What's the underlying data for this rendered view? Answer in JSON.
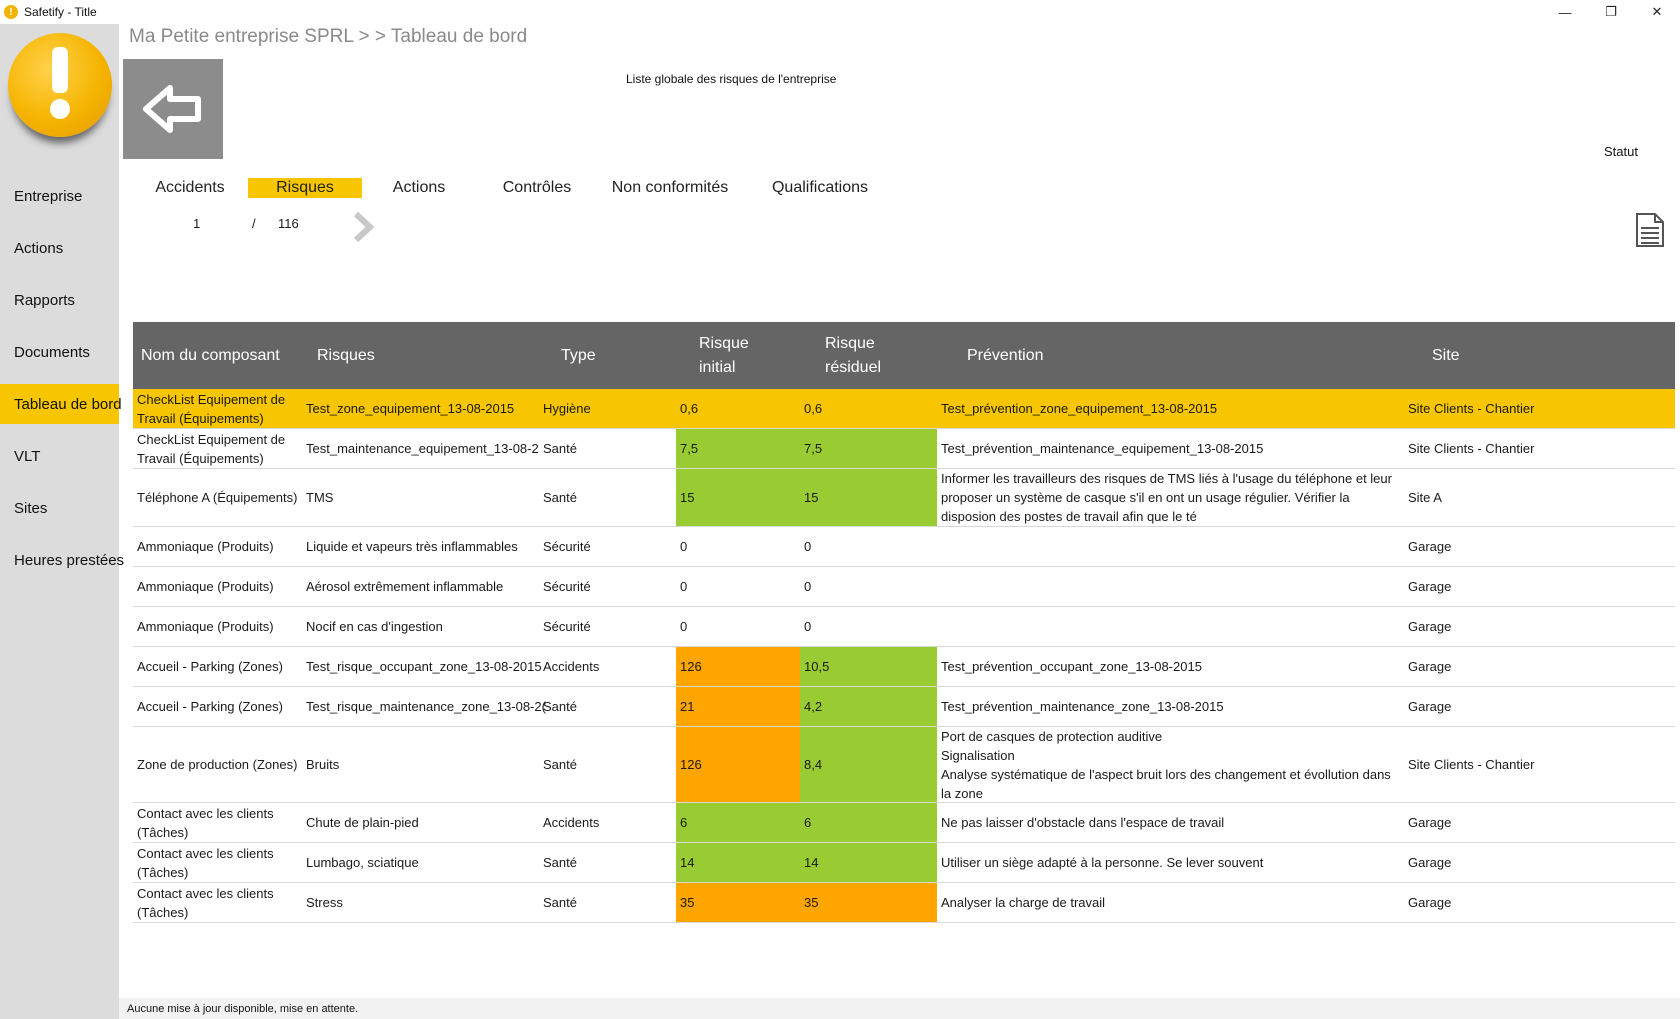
{
  "window": {
    "title": "Safetify - Title",
    "controls": [
      "—",
      "❐",
      "✕"
    ]
  },
  "sidebar": {
    "items": [
      {
        "label": "Entreprise"
      },
      {
        "label": "Actions"
      },
      {
        "label": "Rapports"
      },
      {
        "label": "Documents"
      },
      {
        "label": "Tableau de bord",
        "active": true
      },
      {
        "label": "VLT"
      },
      {
        "label": "Sites"
      },
      {
        "label": "Heures prestées"
      }
    ]
  },
  "header": {
    "breadcrumb": "Ma Petite entreprise SPRL > > Tableau de bord",
    "subtitle": "Liste globale des risques de l'entreprise",
    "statut": "Statut"
  },
  "tabs": [
    {
      "label": "Accidents"
    },
    {
      "label": "Risques",
      "active": true
    },
    {
      "label": "Actions"
    },
    {
      "label": "Contrôles"
    },
    {
      "label": "Non conformités"
    },
    {
      "label": "Qualifications"
    }
  ],
  "pager": {
    "current": "1",
    "separator": "/",
    "total": "116"
  },
  "colors": {
    "accent": "#f7c600",
    "green": "#99cc33",
    "orange": "#ffa500",
    "header": "#656565",
    "sidebar": "#dcdcdc"
  },
  "table": {
    "columns": [
      "Nom du composant",
      "Risques",
      "Type",
      "Risque initial",
      "Risque résiduel",
      "Prévention",
      "Site"
    ],
    "rows": [
      {
        "nom": "CheckList Equipement de Travail  (Équipements)",
        "risque": "Test_zone_equipement_13-08-2015",
        "type": "Hygiène",
        "initial": "0,6",
        "residuel": "0,6",
        "prevention": "Test_prévention_zone_equipement_13-08-2015",
        "site": "Site Clients - Chantier",
        "init_color": "",
        "res_color": ""
      },
      {
        "nom": "CheckList Equipement de Travail  (Équipements)",
        "risque": "Test_maintenance_equipement_13-08-2",
        "type": "Santé",
        "initial": "7,5",
        "residuel": "7,5",
        "prevention": "Test_prévention_maintenance_equipement_13-08-2015",
        "site": "Site Clients - Chantier",
        "init_color": "green",
        "res_color": "green"
      },
      {
        "nom": "Téléphone A (Équipements)",
        "risque": "TMS",
        "type": "Santé",
        "initial": "15",
        "residuel": "15",
        "prevention": "Informer les travailleurs des risques de TMS liés à l'usage du téléphone et leur proposer un système de casque s'il en ont un usage régulier. Vérifier la disposion des postes de travail afin que le té",
        "site": "Site A",
        "init_color": "green",
        "res_color": "green"
      },
      {
        "nom": "Ammoniaque (Produits)",
        "risque": "Liquide et vapeurs très inflammables",
        "type": "Sécurité",
        "initial": "0",
        "residuel": "0",
        "prevention": "",
        "site": "Garage",
        "init_color": "",
        "res_color": ""
      },
      {
        "nom": "Ammoniaque (Produits)",
        "risque": "Aérosol extrêmement inflammable",
        "type": "Sécurité",
        "initial": "0",
        "residuel": "0",
        "prevention": "",
        "site": "Garage",
        "init_color": "",
        "res_color": ""
      },
      {
        "nom": "Ammoniaque (Produits)",
        "risque": "Nocif en cas d'ingestion",
        "type": "Sécurité",
        "initial": "0",
        "residuel": "0",
        "prevention": "",
        "site": "Garage",
        "init_color": "",
        "res_color": ""
      },
      {
        "nom": "Accueil - Parking (Zones)",
        "risque": "Test_risque_occupant_zone_13-08-2015",
        "type": "Accidents",
        "initial": "126",
        "residuel": "10,5",
        "prevention": "Test_prévention_occupant_zone_13-08-2015",
        "site": "Garage",
        "init_color": "orange",
        "res_color": "green"
      },
      {
        "nom": "Accueil - Parking (Zones)",
        "risque": "Test_risque_maintenance_zone_13-08-2(",
        "type": "Santé",
        "initial": "21",
        "residuel": "4,2",
        "prevention": "Test_prévention_maintenance_zone_13-08-2015",
        "site": "Garage",
        "init_color": "orange",
        "res_color": "green"
      },
      {
        "nom": "Zone de production (Zones)",
        "risque": "Bruits",
        "type": "Santé",
        "initial": "126",
        "residuel": "8,4",
        "prevention": "Port de casques de protection auditive\nSignalisation\nAnalyse systématique de l'aspect bruit lors des changement et évollution dans la zone",
        "site": "Site Clients - Chantier",
        "init_color": "orange",
        "res_color": "green"
      },
      {
        "nom": "Contact avec les clients (Tâches)",
        "risque": "Chute de plain-pied",
        "type": "Accidents",
        "initial": "6",
        "residuel": "6",
        "prevention": "Ne pas laisser d'obstacle dans l'espace de travail",
        "site": "Garage",
        "init_color": "green",
        "res_color": "green"
      },
      {
        "nom": "Contact avec les clients (Tâches)",
        "risque": "Lumbago, sciatique",
        "type": "Santé",
        "initial": "14",
        "residuel": "14",
        "prevention": "Utiliser un siège adapté à la personne. Se lever souvent",
        "site": "Garage",
        "init_color": "green",
        "res_color": "green"
      },
      {
        "nom": "Contact avec les clients (Tâches)",
        "risque": "Stress",
        "type": "Santé",
        "initial": "35",
        "residuel": "35",
        "prevention": "Analyser la charge de travail",
        "site": "Garage",
        "init_color": "orange",
        "res_color": "orange"
      }
    ]
  },
  "statusbar": {
    "text": "Aucune mise à jour disponible, mise en attente."
  }
}
